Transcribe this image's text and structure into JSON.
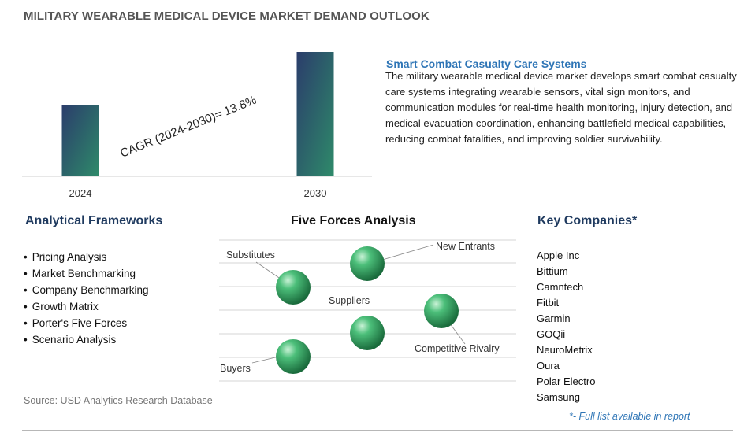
{
  "page_title": "MILITARY WEARABLE MEDICAL DEVICE MARKET DEMAND OUTLOOK",
  "chart_data": {
    "type": "bar",
    "categories": [
      "2024",
      "2030"
    ],
    "values": [
      1.0,
      1.75
    ],
    "title": "",
    "xlabel": "",
    "ylabel": "",
    "annotation": "CAGR (2024-2030)=  13.8%",
    "colors": {
      "bar_top": "#2b3d6b",
      "bar_bottom": "#2e8a6a"
    }
  },
  "description": {
    "title": "Smart Combat Casualty Care Systems",
    "body": "The military wearable medical device market develops smart combat casualty care systems integrating wearable sensors, vital sign monitors, and communication modules for real-time health monitoring, injury detection, and medical evacuation coordination, enhancing battlefield medical capabilities, reducing combat fatalities, and improving soldier survivability."
  },
  "frameworks": {
    "title": "Analytical Frameworks",
    "items": [
      "Pricing Analysis",
      "Market Benchmarking",
      "Company Benchmarking",
      "Growth Matrix",
      "Porter's Five Forces",
      "Scenario Analysis"
    ]
  },
  "five_forces": {
    "title": "Five Forces Analysis",
    "labels": {
      "substitutes": "Substitutes",
      "new_entrants": "New Entrants",
      "suppliers": "Suppliers",
      "competitive_rivalry": "Competitive Rivalry",
      "buyers": "Buyers"
    },
    "sphere_color": "#2e9e5e"
  },
  "companies": {
    "title": "Key Companies*",
    "items": [
      "Apple Inc",
      "Bittium",
      "Camntech",
      "Fitbit",
      "Garmin",
      "GOQii",
      "NeuroMetrix",
      "Oura",
      "Polar Electro",
      "Samsung"
    ],
    "note": "*- Full list available in report"
  },
  "source": "Source: USD Analytics Research Database"
}
